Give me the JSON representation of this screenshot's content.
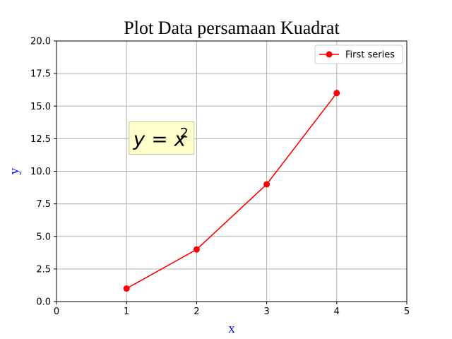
{
  "chart_data": {
    "type": "line",
    "title": "Plot Data persamaan Kuadrat",
    "xlabel": "x",
    "ylabel": "y",
    "xlim": [
      0,
      5
    ],
    "ylim": [
      0,
      20
    ],
    "xticks": [
      0,
      1,
      2,
      3,
      4,
      5
    ],
    "xtick_labels": [
      "0",
      "1",
      "2",
      "3",
      "4",
      "5"
    ],
    "yticks": [
      0,
      2.5,
      5,
      7.5,
      10,
      12.5,
      15,
      17.5,
      20
    ],
    "ytick_labels": [
      "0.0",
      "2.5",
      "5.0",
      "7.5",
      "10.0",
      "12.5",
      "15.0",
      "17.5",
      "20.0"
    ],
    "grid": true,
    "legend_position": "top-right",
    "series": [
      {
        "name": "First series",
        "color": "#ff0000",
        "marker": "circle",
        "x": [
          1,
          2,
          3,
          4
        ],
        "y": [
          1,
          4,
          9,
          16
        ]
      }
    ],
    "annotation": {
      "base": "y = x",
      "exponent": "2",
      "x": 1.5,
      "y": 12.5,
      "box_fill": "#ffffcc",
      "box_edge": "#c8c8a0"
    },
    "axis_label_color": "#0000ff"
  }
}
